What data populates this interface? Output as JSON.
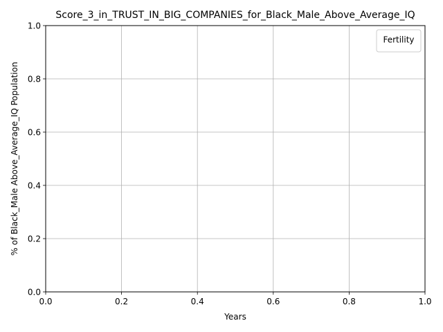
{
  "chart_data": {
    "type": "line",
    "title": "Score_3_in_TRUST_IN_BIG_COMPANIES_for_Black_Male_Above_Average_IQ",
    "xlabel": "Years",
    "ylabel": "% of Black_Male Above_Average_IQ Population",
    "xlim": [
      0.0,
      1.0
    ],
    "ylim": [
      0.0,
      1.0
    ],
    "x_ticks": [
      "0.0",
      "0.2",
      "0.4",
      "0.6",
      "0.8",
      "1.0"
    ],
    "y_ticks": [
      "0.0",
      "0.2",
      "0.4",
      "0.6",
      "0.8",
      "1.0"
    ],
    "grid": true,
    "legend": {
      "title": "Fertility",
      "placement": "top-right",
      "entries": []
    },
    "series": []
  }
}
